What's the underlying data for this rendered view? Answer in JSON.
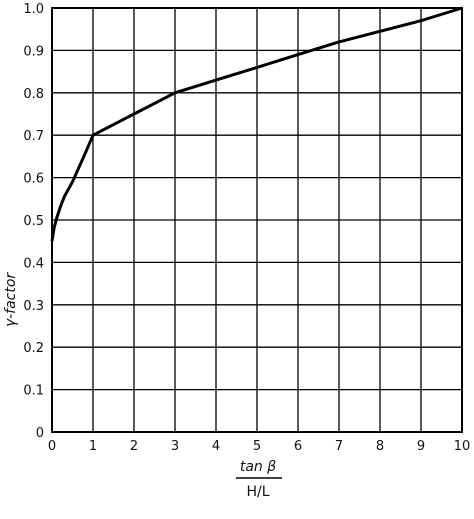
{
  "chart_data": {
    "type": "line",
    "title": "",
    "xlabel_numerator": "tan β",
    "xlabel_denominator": "H/L",
    "ylabel": "γ-factor",
    "xlim": [
      0,
      10
    ],
    "ylim": [
      0,
      1.0
    ],
    "grid": true,
    "x_ticks": [
      "0",
      "1",
      "2",
      "3",
      "4",
      "5",
      "6",
      "7",
      "8",
      "9",
      "10"
    ],
    "y_ticks": [
      "0",
      "0.1",
      "0.2",
      "0.3",
      "0.4",
      "0.5",
      "0.6",
      "0.7",
      "0.8",
      "0.9",
      "1.0"
    ],
    "series": [
      {
        "x": [
          0,
          0.05,
          0.1,
          0.2,
          0.3,
          0.5,
          0.8,
          1.0,
          1.5,
          2,
          2.5,
          3,
          4,
          5,
          6,
          7,
          8,
          9,
          10
        ],
        "y": [
          0.45,
          0.48,
          0.5,
          0.53,
          0.555,
          0.59,
          0.655,
          0.7,
          0.725,
          0.75,
          0.775,
          0.8,
          0.83,
          0.86,
          0.89,
          0.92,
          0.945,
          0.97,
          1.0
        ]
      }
    ]
  }
}
